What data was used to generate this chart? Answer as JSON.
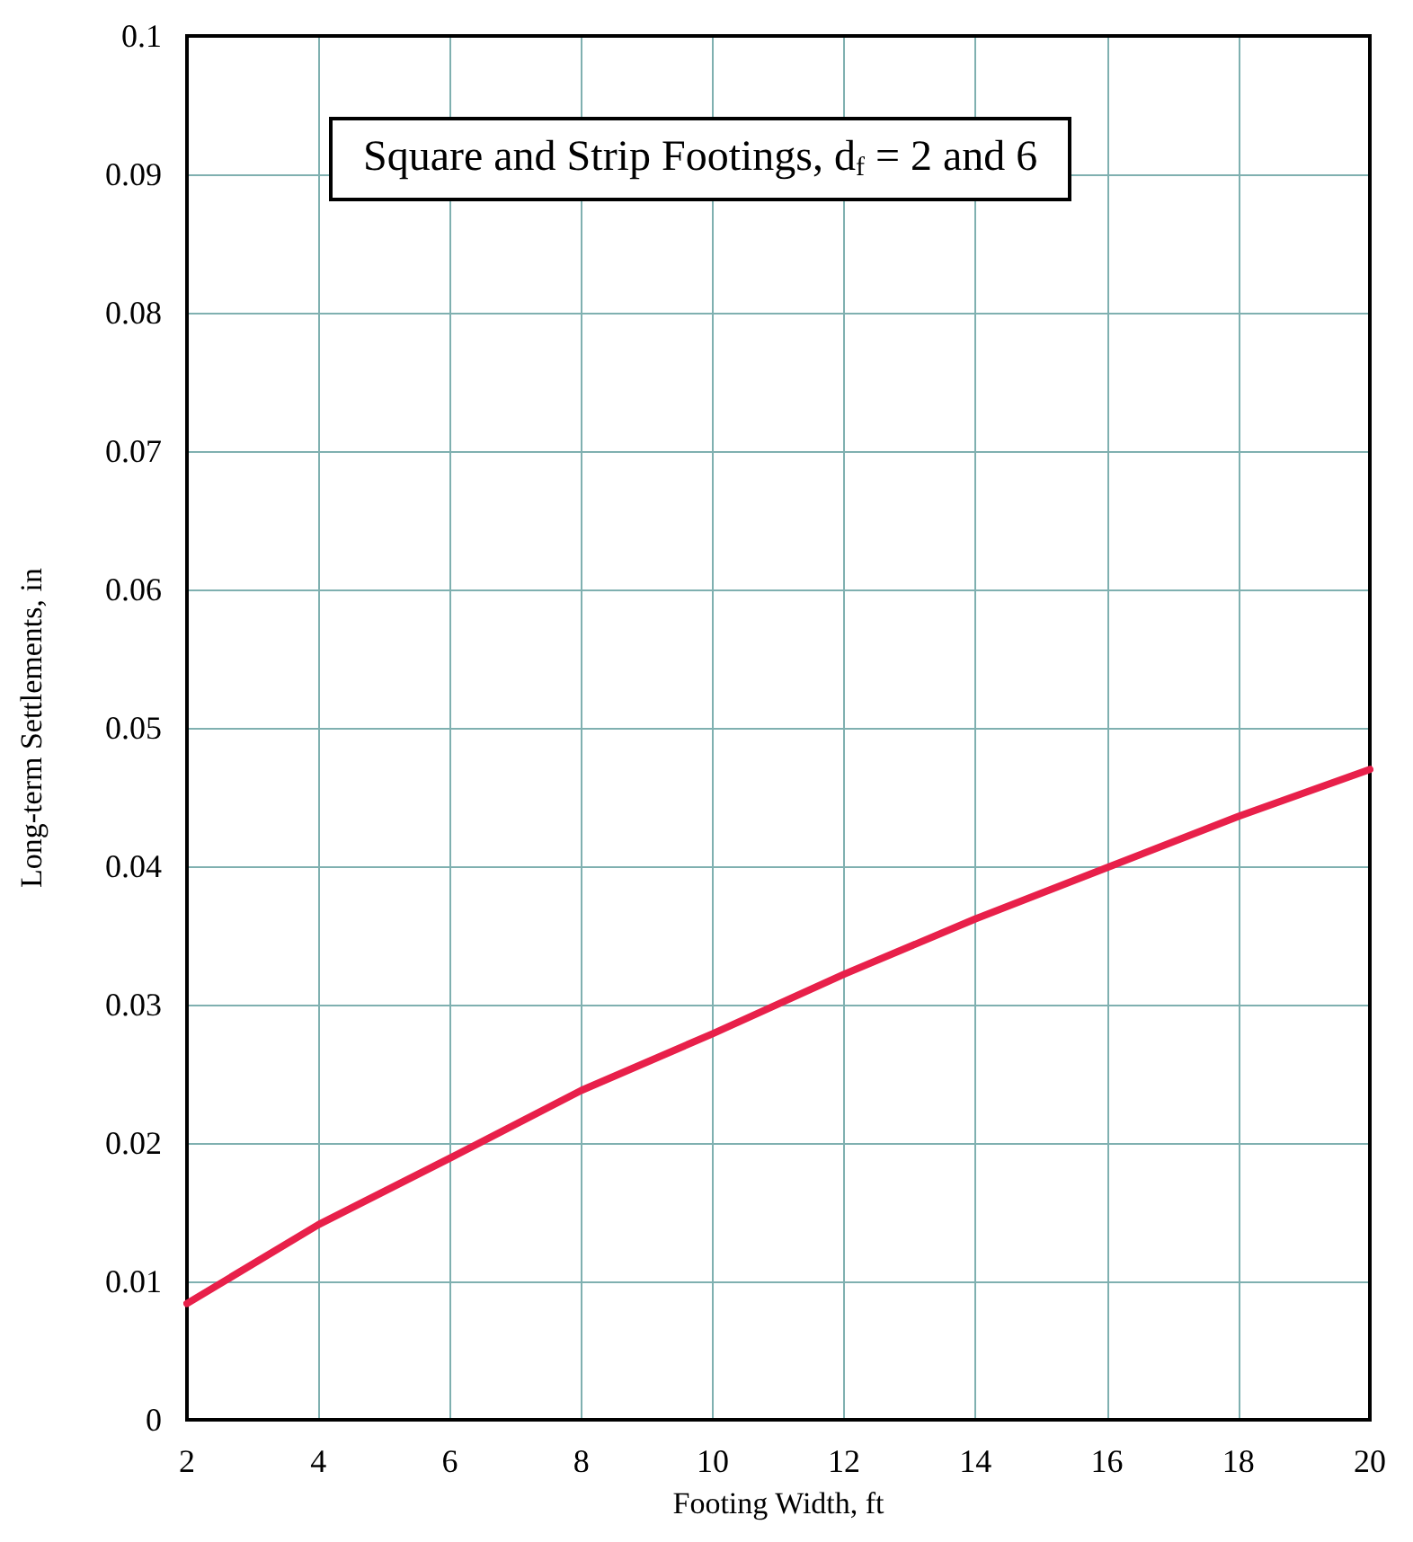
{
  "chart_data": {
    "type": "line",
    "title": "Square and Strip Footings, d$_{f}$ = 2 and 6",
    "xlabel": "Footing Width, ft",
    "ylabel": "Long-term Settlements, in",
    "x": [
      2,
      4,
      6,
      8,
      10,
      12,
      14,
      16,
      18,
      20
    ],
    "series": [
      {
        "color": "#e8204a",
        "values": [
          0.0084,
          0.0141,
          0.0189,
          0.0238,
          0.0279,
          0.0322,
          0.0362,
          0.0399,
          0.0436,
          0.047
        ]
      }
    ],
    "xlim": [
      2,
      20
    ],
    "xticks": [
      2,
      4,
      6,
      8,
      10,
      12,
      14,
      16,
      18,
      20
    ],
    "ylim": [
      0,
      0.1
    ],
    "yticks": [
      0,
      0.01,
      0.02,
      0.03,
      0.04,
      0.05,
      0.06,
      0.07,
      0.08,
      0.09,
      0.1
    ],
    "grid": true,
    "marker": "none",
    "line_style": "solid"
  }
}
